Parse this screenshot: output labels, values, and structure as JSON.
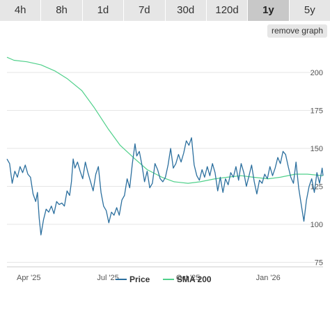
{
  "range_tabs": [
    {
      "label": "4h",
      "active": false
    },
    {
      "label": "8h",
      "active": false
    },
    {
      "label": "1d",
      "active": false
    },
    {
      "label": "7d",
      "active": false
    },
    {
      "label": "30d",
      "active": false
    },
    {
      "label": "120d",
      "active": false
    },
    {
      "label": "1y",
      "active": true
    },
    {
      "label": "5y",
      "active": false
    }
  ],
  "remove_graph_label": "remove graph",
  "colors": {
    "price": "#2b6f9e",
    "sma": "#4fd08a",
    "grid": "#e6e6e6",
    "tab_bg": "#e6e6e6",
    "tab_active": "#c8c8c8"
  },
  "chart_data": {
    "type": "line",
    "x_axis": {
      "type": "date",
      "range": [
        "2025-03-07",
        "2026-03-05"
      ],
      "ticks": [
        {
          "date": "2025-04-01",
          "label": "Apr '25"
        },
        {
          "date": "2025-07-01",
          "label": "Jul '25"
        },
        {
          "date": "2025-10-01",
          "label": "Oct '25"
        },
        {
          "date": "2026-01-01",
          "label": "Jan '26"
        }
      ]
    },
    "y_axis": {
      "position": "right",
      "range": [
        72,
        222
      ],
      "ticks": [
        75,
        100,
        125,
        150,
        175,
        200
      ]
    },
    "grid": {
      "horizontal": true,
      "vertical": false
    },
    "legend": {
      "position": "bottom-center"
    },
    "series": [
      {
        "name": "Price",
        "color": "#2b6f9e",
        "points": [
          [
            "2025-03-07",
            143
          ],
          [
            "2025-03-10",
            140
          ],
          [
            "2025-03-13",
            127
          ],
          [
            "2025-03-16",
            135
          ],
          [
            "2025-03-19",
            131
          ],
          [
            "2025-03-22",
            138
          ],
          [
            "2025-03-25",
            134
          ],
          [
            "2025-03-28",
            139
          ],
          [
            "2025-03-31",
            133
          ],
          [
            "2025-04-03",
            131
          ],
          [
            "2025-04-06",
            120
          ],
          [
            "2025-04-09",
            115
          ],
          [
            "2025-04-11",
            121
          ],
          [
            "2025-04-13",
            104
          ],
          [
            "2025-04-15",
            93
          ],
          [
            "2025-04-18",
            103
          ],
          [
            "2025-04-21",
            110
          ],
          [
            "2025-04-24",
            108
          ],
          [
            "2025-04-27",
            112
          ],
          [
            "2025-04-30",
            107
          ],
          [
            "2025-05-03",
            115
          ],
          [
            "2025-05-06",
            113
          ],
          [
            "2025-05-09",
            114
          ],
          [
            "2025-05-12",
            112
          ],
          [
            "2025-05-15",
            122
          ],
          [
            "2025-05-18",
            119
          ],
          [
            "2025-05-20",
            128
          ],
          [
            "2025-05-22",
            143
          ],
          [
            "2025-05-24",
            137
          ],
          [
            "2025-05-27",
            141
          ],
          [
            "2025-05-30",
            135
          ],
          [
            "2025-06-02",
            130
          ],
          [
            "2025-06-05",
            141
          ],
          [
            "2025-06-08",
            134
          ],
          [
            "2025-06-11",
            128
          ],
          [
            "2025-06-14",
            122
          ],
          [
            "2025-06-17",
            133
          ],
          [
            "2025-06-20",
            138
          ],
          [
            "2025-06-23",
            121
          ],
          [
            "2025-06-26",
            112
          ],
          [
            "2025-06-29",
            109
          ],
          [
            "2025-07-02",
            101
          ],
          [
            "2025-07-05",
            108
          ],
          [
            "2025-07-08",
            106
          ],
          [
            "2025-07-11",
            111
          ],
          [
            "2025-07-14",
            106
          ],
          [
            "2025-07-17",
            116
          ],
          [
            "2025-07-20",
            119
          ],
          [
            "2025-07-23",
            130
          ],
          [
            "2025-07-26",
            124
          ],
          [
            "2025-07-29",
            140
          ],
          [
            "2025-08-01",
            153
          ],
          [
            "2025-08-03",
            145
          ],
          [
            "2025-08-06",
            148
          ],
          [
            "2025-08-09",
            139
          ],
          [
            "2025-08-12",
            128
          ],
          [
            "2025-08-15",
            135
          ],
          [
            "2025-08-18",
            124
          ],
          [
            "2025-08-21",
            127
          ],
          [
            "2025-08-24",
            140
          ],
          [
            "2025-08-27",
            136
          ],
          [
            "2025-08-30",
            130
          ],
          [
            "2025-09-02",
            128
          ],
          [
            "2025-09-05",
            131
          ],
          [
            "2025-09-08",
            139
          ],
          [
            "2025-09-11",
            150
          ],
          [
            "2025-09-14",
            137
          ],
          [
            "2025-09-17",
            140
          ],
          [
            "2025-09-20",
            146
          ],
          [
            "2025-09-23",
            141
          ],
          [
            "2025-09-26",
            147
          ],
          [
            "2025-09-29",
            155
          ],
          [
            "2025-10-02",
            152
          ],
          [
            "2025-10-05",
            157
          ],
          [
            "2025-10-08",
            139
          ],
          [
            "2025-10-11",
            132
          ],
          [
            "2025-10-14",
            129
          ],
          [
            "2025-10-17",
            136
          ],
          [
            "2025-10-20",
            131
          ],
          [
            "2025-10-23",
            138
          ],
          [
            "2025-10-26",
            132
          ],
          [
            "2025-10-29",
            140
          ],
          [
            "2025-11-01",
            134
          ],
          [
            "2025-11-04",
            122
          ],
          [
            "2025-11-07",
            131
          ],
          [
            "2025-11-10",
            121
          ],
          [
            "2025-11-13",
            130
          ],
          [
            "2025-11-16",
            126
          ],
          [
            "2025-11-19",
            134
          ],
          [
            "2025-11-22",
            131
          ],
          [
            "2025-11-25",
            138
          ],
          [
            "2025-11-28",
            129
          ],
          [
            "2025-12-01",
            140
          ],
          [
            "2025-12-04",
            134
          ],
          [
            "2025-12-07",
            125
          ],
          [
            "2025-12-10",
            132
          ],
          [
            "2025-12-13",
            139
          ],
          [
            "2025-12-16",
            128
          ],
          [
            "2025-12-19",
            120
          ],
          [
            "2025-12-22",
            129
          ],
          [
            "2025-12-25",
            127
          ],
          [
            "2025-12-28",
            133
          ],
          [
            "2025-12-31",
            130
          ],
          [
            "2026-01-03",
            138
          ],
          [
            "2026-01-06",
            132
          ],
          [
            "2026-01-09",
            137
          ],
          [
            "2026-01-12",
            144
          ],
          [
            "2026-01-15",
            140
          ],
          [
            "2026-01-18",
            148
          ],
          [
            "2026-01-21",
            146
          ],
          [
            "2026-01-24",
            138
          ],
          [
            "2026-01-27",
            131
          ],
          [
            "2026-01-30",
            127
          ],
          [
            "2026-02-02",
            141
          ],
          [
            "2026-02-05",
            124
          ],
          [
            "2026-02-08",
            113
          ],
          [
            "2026-02-11",
            102
          ],
          [
            "2026-02-14",
            116
          ],
          [
            "2026-02-17",
            125
          ],
          [
            "2026-02-20",
            130
          ],
          [
            "2026-02-23",
            121
          ],
          [
            "2026-02-26",
            134
          ],
          [
            "2026-03-01",
            127
          ],
          [
            "2026-03-04",
            137
          ],
          [
            "2026-03-05",
            132
          ]
        ]
      },
      {
        "name": "SMA 200",
        "color": "#4fd08a",
        "points": [
          [
            "2025-03-07",
            210
          ],
          [
            "2025-03-15",
            208
          ],
          [
            "2025-03-30",
            207
          ],
          [
            "2025-04-15",
            205
          ],
          [
            "2025-05-01",
            201
          ],
          [
            "2025-05-15",
            196
          ],
          [
            "2025-06-01",
            188
          ],
          [
            "2025-06-15",
            177
          ],
          [
            "2025-07-01",
            163
          ],
          [
            "2025-07-15",
            152
          ],
          [
            "2025-08-01",
            143
          ],
          [
            "2025-08-15",
            136
          ],
          [
            "2025-09-01",
            131
          ],
          [
            "2025-09-15",
            128
          ],
          [
            "2025-10-01",
            127
          ],
          [
            "2025-10-15",
            128
          ],
          [
            "2025-11-01",
            130
          ],
          [
            "2025-11-15",
            131
          ],
          [
            "2025-12-01",
            132
          ],
          [
            "2025-12-15",
            131
          ],
          [
            "2026-01-01",
            130
          ],
          [
            "2026-01-15",
            131
          ],
          [
            "2026-02-01",
            133
          ],
          [
            "2026-02-15",
            133
          ],
          [
            "2026-03-05",
            132
          ]
        ]
      }
    ]
  }
}
